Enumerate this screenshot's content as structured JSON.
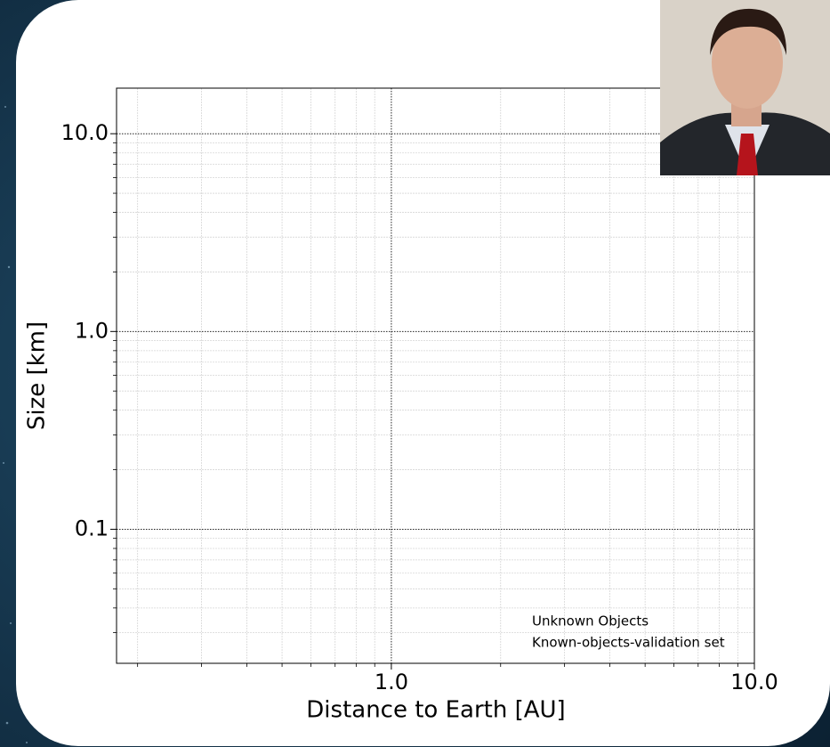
{
  "chart_data": {
    "type": "scatter",
    "x_label": "Distance to Earth [AU]",
    "y_label": "Size [km]",
    "xscale": "log",
    "yscale": "log",
    "xlim": [
      0.175,
      10
    ],
    "ylim": [
      0.021,
      17
    ],
    "xticks": [
      {
        "value": 1,
        "label": "1.0"
      },
      {
        "value": 10,
        "label": "10.0"
      }
    ],
    "yticks": [
      0.1,
      {
        "value": 1,
        "label": "1.0"
      },
      {
        "value": 10,
        "label": "10.0"
      }
    ],
    "grid": true,
    "legend": "lower right",
    "series": [
      {
        "name": "Unknown Objects",
        "x": [],
        "values": []
      },
      {
        "name": "Known-objects-validation set",
        "x": [],
        "values": []
      }
    ]
  }
}
